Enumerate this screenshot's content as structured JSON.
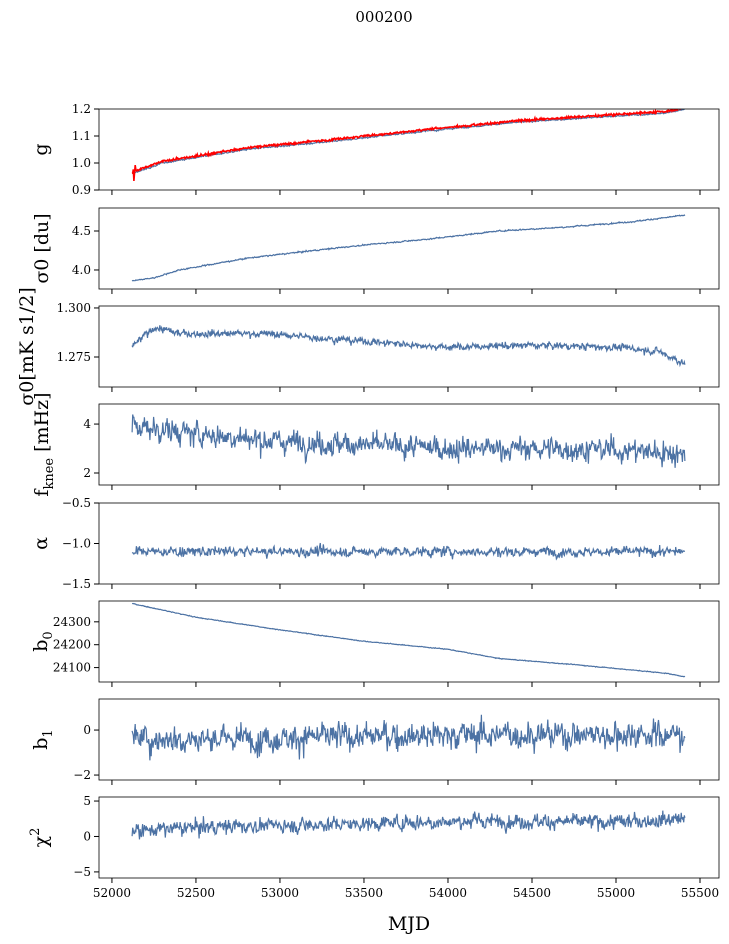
{
  "chart_data": {
    "type": "line",
    "title": "000200",
    "xlabel": "MJD",
    "xlim": [
      51923,
      55613
    ],
    "xticks": [
      52000,
      52500,
      53000,
      53500,
      54000,
      54500,
      55000,
      55500
    ],
    "xtick_labels": [
      "52000",
      "52500",
      "53000",
      "53500",
      "54000",
      "54500",
      "55000",
      "55500"
    ],
    "x_range_data": [
      52120,
      55410
    ],
    "series_color": "#4c72a4",
    "overlay_color": "#ff0000",
    "panels": [
      {
        "ylabel": "g",
        "ylim": [
          0.9,
          1.2
        ],
        "yticks": [
          0.9,
          1.0,
          1.1,
          1.2
        ],
        "ytick_labels": [
          "0.9",
          "1.0",
          "1.1",
          "1.2"
        ],
        "trend": [
          [
            52120,
            0.96
          ],
          [
            52300,
            1.0
          ],
          [
            52800,
            1.05
          ],
          [
            53300,
            1.08
          ],
          [
            53900,
            1.12
          ],
          [
            54400,
            1.15
          ],
          [
            54900,
            1.17
          ],
          [
            55300,
            1.185
          ],
          [
            55410,
            1.2
          ]
        ],
        "noise": 0.002,
        "overlay": {
          "offset": 0.006,
          "noise": 0.003,
          "spike_at": 52120,
          "spike_amp": 0.03
        }
      },
      {
        "ylabel": "σ0 [du]",
        "ylim": [
          3.756,
          4.795
        ],
        "yticks": [
          4.0,
          4.5
        ],
        "ytick_labels": [
          "4.0",
          "4.5"
        ],
        "trend": [
          [
            52120,
            3.86
          ],
          [
            52250,
            3.9
          ],
          [
            52400,
            4.0
          ],
          [
            52800,
            4.15
          ],
          [
            53200,
            4.25
          ],
          [
            53500,
            4.32
          ],
          [
            53900,
            4.4
          ],
          [
            54300,
            4.5
          ],
          [
            54700,
            4.55
          ],
          [
            55100,
            4.62
          ],
          [
            55400,
            4.7
          ]
        ],
        "noise": 0.006
      },
      {
        "ylabel": "σ0[mK s1/2]",
        "ylim": [
          1.2597,
          1.301
        ],
        "yticks": [
          1.275,
          1.3
        ],
        "ytick_labels": [
          "1.275",
          "1.300"
        ],
        "trend": [
          [
            52130,
            1.281
          ],
          [
            52250,
            1.29
          ],
          [
            52400,
            1.287
          ],
          [
            52900,
            1.287
          ],
          [
            53500,
            1.283
          ],
          [
            54000,
            1.28
          ],
          [
            54500,
            1.281
          ],
          [
            55000,
            1.28
          ],
          [
            55250,
            1.278
          ],
          [
            55400,
            1.272
          ]
        ],
        "noise": 0.0013
      },
      {
        "ylabel": "fknee [mHz]",
        "ylim": [
          1.51,
          4.82
        ],
        "yticks": [
          2,
          4
        ],
        "ytick_labels": [
          "2",
          "4"
        ],
        "trend": [
          [
            52130,
            3.9
          ],
          [
            52500,
            3.6
          ],
          [
            53000,
            3.3
          ],
          [
            53500,
            3.15
          ],
          [
            54000,
            3.0
          ],
          [
            54500,
            3.0
          ],
          [
            55000,
            2.95
          ],
          [
            55410,
            2.8
          ]
        ],
        "noise": 0.35
      },
      {
        "ylabel": "α",
        "ylim": [
          -1.5,
          -0.5
        ],
        "yticks": [
          -1.5,
          -1.0,
          -0.5
        ],
        "ytick_labels": [
          "−1.5",
          "−1.0",
          "−0.5"
        ],
        "trend": [
          [
            52120,
            -1.1
          ],
          [
            55410,
            -1.1
          ]
        ],
        "noise": 0.045
      },
      {
        "ylabel": "b0",
        "ylim": [
          24037,
          24391
        ],
        "yticks": [
          24100,
          24200,
          24300
        ],
        "ytick_labels": [
          "24100",
          "24200",
          "24300"
        ],
        "trend": [
          [
            52120,
            24380
          ],
          [
            52500,
            24320
          ],
          [
            53000,
            24265
          ],
          [
            53500,
            24215
          ],
          [
            54000,
            24180
          ],
          [
            54300,
            24140
          ],
          [
            54800,
            24110
          ],
          [
            55300,
            24075
          ],
          [
            55410,
            24060
          ]
        ],
        "noise": 1.2
      },
      {
        "ylabel": "b1",
        "ylim": [
          -2.22,
          1.38
        ],
        "yticks": [
          -2,
          0
        ],
        "ytick_labels": [
          "−2",
          "0"
        ],
        "trend": [
          [
            52120,
            -0.4
          ],
          [
            53000,
            -0.35
          ],
          [
            54000,
            -0.2
          ],
          [
            55410,
            -0.2
          ]
        ],
        "noise": 0.45
      },
      {
        "ylabel": "χ2",
        "ylim": [
          -5.86,
          5.57
        ],
        "yticks": [
          -5,
          0,
          5
        ],
        "ytick_labels": [
          "−5",
          "0",
          "5"
        ],
        "trend": [
          [
            52120,
            0.8
          ],
          [
            52600,
            1.4
          ],
          [
            53500,
            1.8
          ],
          [
            54200,
            2.2
          ],
          [
            55000,
            2.0
          ],
          [
            55410,
            2.6
          ]
        ],
        "noise": 0.75
      }
    ]
  }
}
